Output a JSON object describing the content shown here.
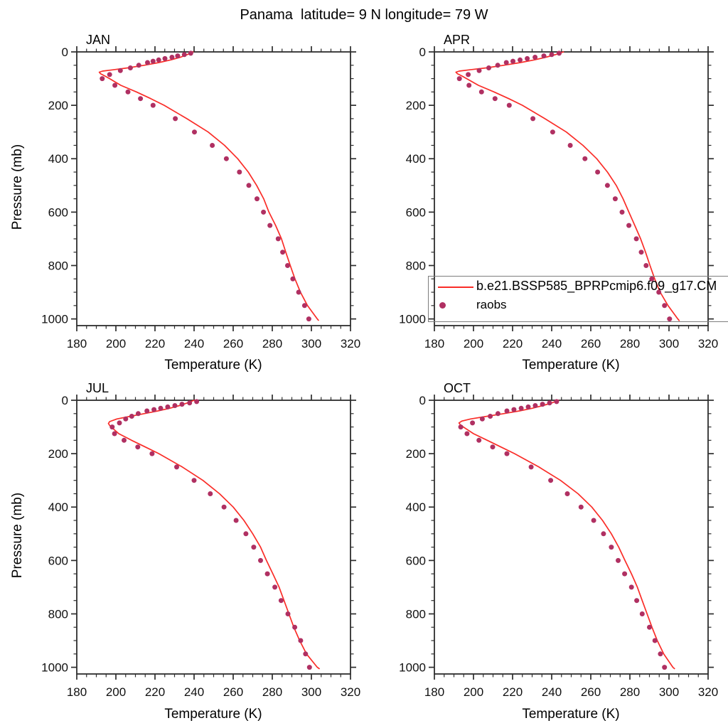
{
  "title": "Panama  latitude= 9 N longitude= 79 W",
  "legend": {
    "entries": [
      {
        "label": "b.e21.BSSP585_BPRPcmip6.f09_g17.CM",
        "swatch": "line",
        "color": "#fa2d28"
      },
      {
        "label": "raobs",
        "swatch": "dot",
        "color": "#b03062"
      }
    ]
  },
  "style": {
    "model_line_color": "#fa2d28",
    "raobs_dot_color": "#b03062",
    "axis_color": "#2d2d2d",
    "tick_label_color": "#111111"
  },
  "chart_data": [
    {
      "id": "jan",
      "title": "JAN",
      "type": "line",
      "xlabel": "Temperature (K)",
      "ylabel": "Pressure (mb)",
      "xlim": [
        180,
        320
      ],
      "ylim": [
        0,
        1025
      ],
      "y_inverted": true,
      "x_ticks": [
        180,
        200,
        220,
        240,
        260,
        280,
        300,
        320
      ],
      "x_minor_step": 5,
      "y_ticks": [
        0,
        200,
        400,
        600,
        800,
        1000
      ],
      "y_minor_step": 50,
      "series": [
        {
          "name": "b.e21.BSSP585_BPRPcmip6.f09_g17.CM",
          "type": "line",
          "color": "#fa2d28",
          "pressure": [
            0,
            10,
            20,
            30,
            40,
            50,
            60,
            67,
            72,
            76,
            82,
            90,
            100,
            125,
            150,
            175,
            200,
            250,
            300,
            350,
            400,
            450,
            500,
            550,
            600,
            650,
            700,
            750,
            800,
            850,
            900,
            950,
            1000,
            1005
          ],
          "temperature": [
            239.5,
            236.5,
            233,
            228,
            222,
            214.5,
            206,
            198.5,
            193.2,
            191.5,
            192.2,
            194.3,
            196.8,
            202.5,
            210.5,
            217.8,
            224.7,
            236.3,
            247.2,
            255.6,
            262.3,
            267.7,
            272,
            275.6,
            278.3,
            281.7,
            284.7,
            286.9,
            289.2,
            291.6,
            294.4,
            298,
            303,
            303.6
          ]
        },
        {
          "name": "raobs",
          "type": "scatter",
          "color": "#b03062",
          "pressure": [
            5,
            10,
            15,
            20,
            25,
            30,
            35,
            40,
            50,
            60,
            70,
            85,
            100,
            125,
            150,
            175,
            200,
            250,
            300,
            350,
            400,
            450,
            500,
            550,
            600,
            650,
            700,
            750,
            800,
            850,
            900,
            950,
            1000
          ],
          "temperature": [
            238.3,
            235,
            231.6,
            228.7,
            225.1,
            221.9,
            219,
            216.2,
            211.7,
            207.4,
            202.3,
            196.8,
            193,
            199.5,
            206.2,
            212.6,
            219,
            230.4,
            240.2,
            249.3,
            256.5,
            263.2,
            268,
            272.2,
            275.5,
            278.8,
            283,
            285.3,
            287.8,
            290.5,
            293.5,
            296.5,
            298.7
          ]
        }
      ]
    },
    {
      "id": "apr",
      "title": "APR",
      "type": "line",
      "xlabel": "Temperature (K)",
      "ylabel": "Pressure (mb)",
      "xlim": [
        180,
        320
      ],
      "ylim": [
        0,
        1025
      ],
      "y_inverted": true,
      "x_ticks": [
        180,
        200,
        220,
        240,
        260,
        280,
        300,
        320
      ],
      "x_minor_step": 5,
      "y_ticks": [
        0,
        200,
        400,
        600,
        800,
        1000
      ],
      "y_minor_step": 50,
      "series": [
        {
          "name": "b.e21.BSSP585_BPRPcmip6.f09_g17.CM",
          "type": "line",
          "color": "#fa2d28",
          "pressure": [
            0,
            10,
            20,
            30,
            40,
            50,
            60,
            67,
            72,
            76,
            82,
            90,
            100,
            125,
            150,
            175,
            200,
            250,
            300,
            350,
            400,
            450,
            500,
            550,
            600,
            650,
            700,
            750,
            800,
            850,
            900,
            950,
            1000,
            1006
          ],
          "temperature": [
            246,
            242,
            237,
            231,
            224,
            215.5,
            206.5,
            198,
            192.7,
            191,
            191.8,
            194,
            196.5,
            202.5,
            210.5,
            218,
            225,
            236.5,
            247.5,
            256,
            263,
            268.5,
            273,
            276.5,
            279.5,
            282.5,
            285.5,
            288,
            290.3,
            292.7,
            295.5,
            299.5,
            304.5,
            305.2
          ]
        },
        {
          "name": "raobs",
          "type": "scatter",
          "color": "#b03062",
          "pressure": [
            5,
            10,
            15,
            20,
            25,
            30,
            35,
            40,
            50,
            60,
            70,
            85,
            100,
            125,
            150,
            175,
            200,
            250,
            300,
            350,
            400,
            450,
            500,
            550,
            600,
            650,
            700,
            750,
            800,
            850,
            900,
            950,
            1000
          ],
          "temperature": [
            243.8,
            240,
            236,
            231.5,
            227.5,
            223.8,
            220.2,
            216.8,
            212.4,
            207.8,
            202.9,
            197.3,
            192.8,
            197.7,
            204.1,
            211,
            218.3,
            230.4,
            240.5,
            249.5,
            257,
            263.5,
            268.5,
            272.5,
            276,
            279.5,
            283.3,
            285.8,
            288.3,
            291.2,
            294.8,
            297.7,
            300.3
          ]
        }
      ]
    },
    {
      "id": "jul",
      "title": "JUL",
      "type": "line",
      "xlabel": "Temperature (K)",
      "ylabel": "Pressure (mb)",
      "xlim": [
        180,
        320
      ],
      "ylim": [
        0,
        1025
      ],
      "y_inverted": true,
      "x_ticks": [
        180,
        200,
        220,
        240,
        260,
        280,
        300,
        320
      ],
      "x_minor_step": 5,
      "y_ticks": [
        0,
        200,
        400,
        600,
        800,
        1000
      ],
      "y_minor_step": 50,
      "series": [
        {
          "name": "b.e21.BSSP585_BPRPcmip6.f09_g17.CM",
          "type": "line",
          "color": "#fa2d28",
          "pressure": [
            0,
            10,
            20,
            30,
            40,
            50,
            60,
            70,
            80,
            87,
            94,
            100,
            125,
            150,
            175,
            200,
            250,
            300,
            350,
            400,
            450,
            500,
            550,
            600,
            650,
            700,
            750,
            800,
            850,
            900,
            950,
            1000,
            1005
          ],
          "temperature": [
            240,
            236.5,
            232.5,
            227.5,
            221.5,
            214.5,
            207.5,
            200.5,
            196.8,
            196.2,
            196.8,
            197.6,
            201.5,
            208,
            215,
            222,
            234,
            244.5,
            253,
            260,
            265.5,
            270,
            274,
            277,
            280.3,
            283.5,
            286,
            288.5,
            291,
            294,
            297.5,
            303,
            304
          ]
        },
        {
          "name": "raobs",
          "type": "scatter",
          "color": "#b03062",
          "pressure": [
            5,
            10,
            15,
            20,
            25,
            30,
            35,
            40,
            50,
            60,
            70,
            85,
            100,
            125,
            150,
            175,
            200,
            250,
            300,
            350,
            400,
            450,
            500,
            550,
            600,
            650,
            700,
            750,
            800,
            850,
            900,
            950,
            1000
          ],
          "temperature": [
            241.3,
            237.7,
            233.8,
            230.2,
            226.5,
            222.9,
            219.5,
            215.9,
            211.4,
            208.1,
            205,
            201.8,
            198.1,
            199.3,
            204.2,
            211.2,
            218.5,
            231.1,
            240,
            248.3,
            255.3,
            261.5,
            266.5,
            270.5,
            274,
            277.5,
            281.3,
            284.5,
            288,
            291.5,
            294.5,
            297,
            299
          ]
        }
      ]
    },
    {
      "id": "oct",
      "title": "OCT",
      "type": "line",
      "xlabel": "Temperature (K)",
      "ylabel": "Pressure (mb)",
      "xlim": [
        180,
        320
      ],
      "ylim": [
        0,
        1025
      ],
      "y_inverted": true,
      "x_ticks": [
        180,
        200,
        220,
        240,
        260,
        280,
        300,
        320
      ],
      "x_minor_step": 5,
      "y_ticks": [
        0,
        200,
        400,
        600,
        800,
        1000
      ],
      "y_minor_step": 50,
      "series": [
        {
          "name": "b.e21.BSSP585_BPRPcmip6.f09_g17.CM",
          "type": "line",
          "color": "#fa2d28",
          "pressure": [
            0,
            10,
            20,
            30,
            40,
            50,
            60,
            70,
            78,
            85,
            92,
            100,
            125,
            150,
            175,
            200,
            250,
            300,
            350,
            400,
            450,
            500,
            550,
            600,
            650,
            700,
            750,
            800,
            850,
            900,
            950,
            1000,
            1005
          ],
          "temperature": [
            243.5,
            240,
            235.5,
            230,
            223.5,
            215.5,
            207,
            198.5,
            194,
            192.6,
            193.3,
            194.8,
            200,
            207,
            214,
            221,
            233.5,
            244.5,
            253.5,
            260.5,
            266,
            270.5,
            274.3,
            277.5,
            280.8,
            283.8,
            286.3,
            288.8,
            291.3,
            294,
            297.3,
            302,
            302.8
          ]
        },
        {
          "name": "raobs",
          "type": "scatter",
          "color": "#b03062",
          "pressure": [
            5,
            10,
            15,
            20,
            25,
            30,
            35,
            40,
            50,
            60,
            70,
            85,
            100,
            125,
            150,
            175,
            200,
            250,
            300,
            350,
            400,
            450,
            500,
            550,
            600,
            650,
            700,
            750,
            800,
            850,
            900,
            950,
            1000
          ],
          "temperature": [
            242.5,
            238.9,
            235.3,
            231.6,
            228,
            224.4,
            220.7,
            217.1,
            212.5,
            208.6,
            204.5,
            199.5,
            193.5,
            196.7,
            202.8,
            209.8,
            217.1,
            229.5,
            239.5,
            248,
            255,
            261.5,
            266.5,
            270.5,
            274,
            277.3,
            280.8,
            283.5,
            286.3,
            290,
            292.8,
            295.6,
            297.7
          ]
        }
      ]
    }
  ]
}
